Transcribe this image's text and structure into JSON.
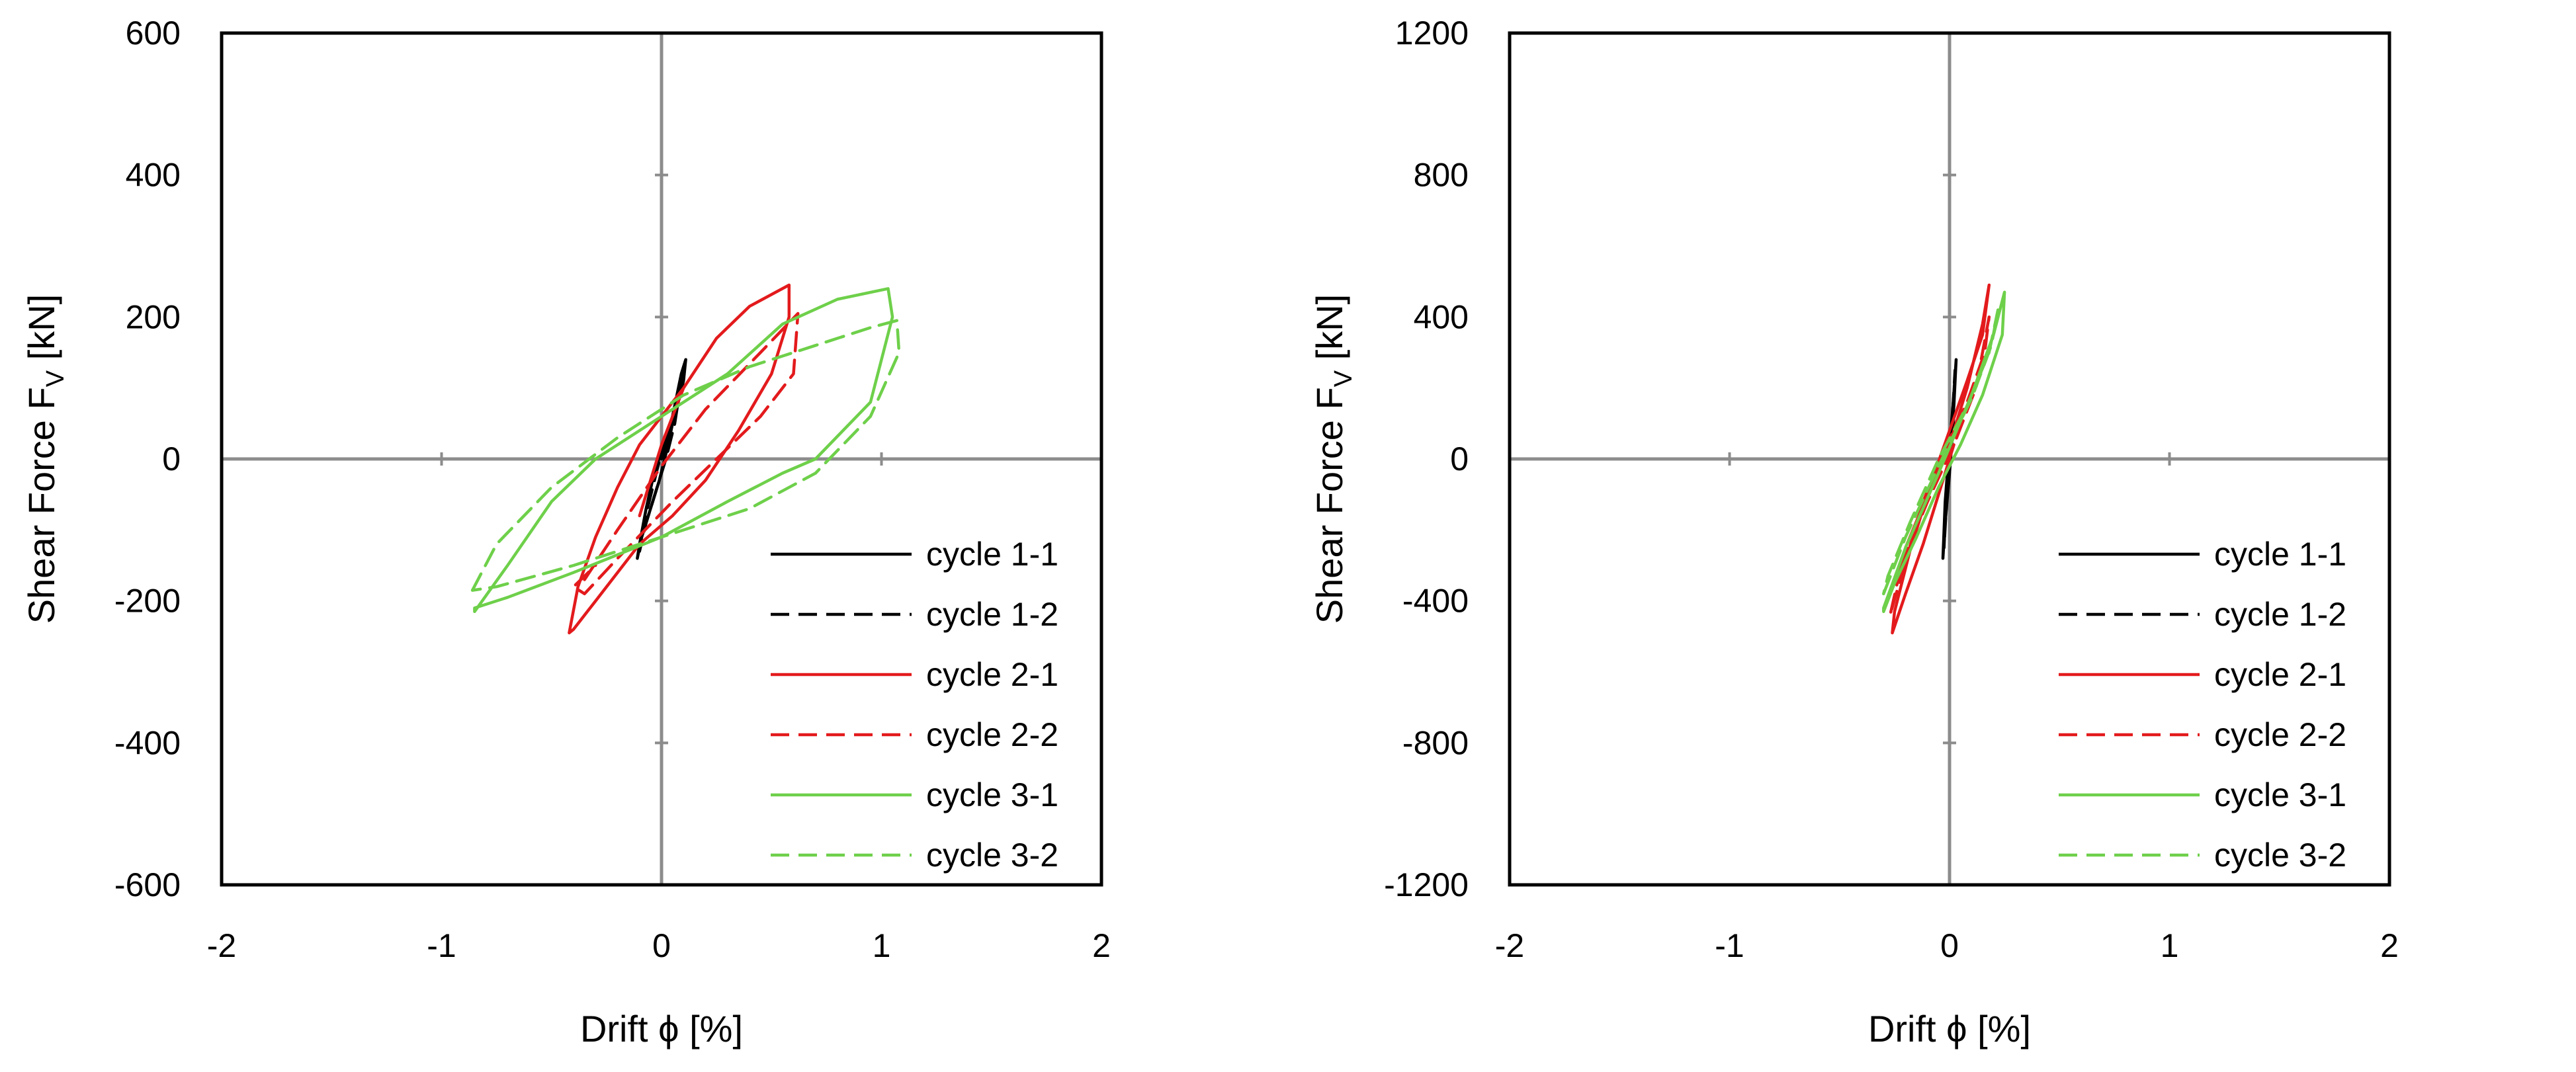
{
  "chart_data": [
    {
      "type": "line",
      "xlabel": "Drift ϕ [%]",
      "ylabel_main": "Shear Force F",
      "ylabel_sub": "V",
      "ylabel_suffix": " [kN]",
      "xlim": [
        -2,
        2
      ],
      "ylim": [
        -600,
        600
      ],
      "xticks": [
        -2,
        -1,
        0,
        1,
        2
      ],
      "yticks": [
        -600,
        -400,
        -200,
        0,
        200,
        400,
        600
      ],
      "legend_position": "bottom-right",
      "grid": false,
      "series": [
        {
          "name": "cycle 1-1",
          "color": "#000000",
          "dash": "solid",
          "x": [
            0.0,
            0.05,
            0.09,
            0.11,
            0.1,
            0.06,
            0.02,
            -0.03,
            -0.07,
            -0.1,
            -0.11,
            -0.09,
            -0.05,
            -0.01,
            0.03,
            0.07,
            0.1
          ],
          "y": [
            0,
            60,
            120,
            140,
            110,
            60,
            25,
            -15,
            -70,
            -120,
            -140,
            -110,
            -70,
            -30,
            20,
            80,
            130
          ]
        },
        {
          "name": "cycle 1-2",
          "color": "#000000",
          "dash": "dashed",
          "x": [
            0.0,
            0.04,
            0.08,
            0.1,
            0.08,
            0.04,
            0.0,
            -0.04,
            -0.08,
            -0.1,
            -0.07,
            -0.03,
            0.02,
            0.06,
            0.09
          ],
          "y": [
            0,
            40,
            90,
            130,
            90,
            45,
            10,
            -40,
            -90,
            -130,
            -90,
            -50,
            0,
            50,
            110
          ]
        },
        {
          "name": "cycle 2-1",
          "color": "#e31a1c",
          "dash": "solid",
          "x": [
            -0.1,
            0.0,
            0.1,
            0.25,
            0.4,
            0.58,
            0.58,
            0.5,
            0.35,
            0.2,
            0.05,
            -0.1,
            -0.3,
            -0.4,
            -0.42,
            -0.38,
            -0.3,
            -0.2,
            -0.1,
            0.0,
            0.1
          ],
          "y": [
            -80,
            20,
            100,
            170,
            215,
            245,
            200,
            120,
            40,
            -30,
            -80,
            -120,
            -200,
            -240,
            -245,
            -180,
            -110,
            -40,
            20,
            60,
            100
          ]
        },
        {
          "name": "cycle 2-2",
          "color": "#e31a1c",
          "dash": "dashed",
          "x": [
            -0.35,
            -0.2,
            0.0,
            0.2,
            0.45,
            0.62,
            0.6,
            0.45,
            0.25,
            0.05,
            -0.2,
            -0.35,
            -0.4,
            -0.3
          ],
          "y": [
            -170,
            -100,
            -10,
            70,
            150,
            205,
            120,
            60,
            0,
            -60,
            -140,
            -190,
            -180,
            -150
          ]
        },
        {
          "name": "cycle 3-1",
          "color": "#6ed04a",
          "dash": "solid",
          "x": [
            -0.85,
            -0.7,
            -0.5,
            -0.3,
            0.0,
            0.3,
            0.55,
            0.8,
            1.03,
            1.05,
            0.95,
            0.7,
            0.55,
            0.3,
            0.0,
            -0.4,
            -0.7,
            -0.85,
            -0.85
          ],
          "y": [
            -215,
            -150,
            -60,
            0,
            60,
            120,
            190,
            225,
            240,
            200,
            80,
            0,
            -20,
            -60,
            -110,
            -160,
            -195,
            -210,
            -215
          ]
        },
        {
          "name": "cycle 3-2",
          "color": "#6ed04a",
          "dash": "dashed",
          "x": [
            -0.86,
            -0.75,
            -0.5,
            -0.2,
            0.1,
            0.4,
            0.7,
            0.95,
            1.07,
            1.08,
            0.95,
            0.7,
            0.4,
            0.0,
            -0.4,
            -0.75,
            -0.86
          ],
          "y": [
            -185,
            -120,
            -40,
            30,
            90,
            130,
            160,
            185,
            195,
            150,
            60,
            -20,
            -70,
            -110,
            -150,
            -180,
            -185
          ]
        }
      ]
    },
    {
      "type": "line",
      "xlabel": "Drift ϕ [%]",
      "ylabel_main": "Shear Force F",
      "ylabel_sub": "V",
      "ylabel_suffix": " [kN]",
      "xlim": [
        -2,
        2
      ],
      "ylim": [
        -1200,
        1200
      ],
      "xticks": [
        -2,
        -1,
        0,
        1,
        2
      ],
      "yticks": [
        -1200,
        -800,
        -400,
        0,
        400,
        800,
        1200
      ],
      "legend_position": "bottom-right",
      "grid": false,
      "series": [
        {
          "name": "cycle 1-1",
          "color": "#000000",
          "dash": "solid",
          "x": [
            0.0,
            0.02,
            0.03,
            0.02,
            0.0,
            -0.02,
            -0.03,
            -0.02,
            0.0,
            0.02
          ],
          "y": [
            0,
            150,
            280,
            180,
            40,
            -120,
            -280,
            -180,
            -40,
            120
          ]
        },
        {
          "name": "cycle 1-2",
          "color": "#000000",
          "dash": "dashed",
          "x": [
            0.0,
            0.015,
            0.025,
            0.015,
            0.0,
            -0.015,
            -0.025,
            -0.015,
            0.0
          ],
          "y": [
            0,
            120,
            250,
            140,
            20,
            -110,
            -250,
            -140,
            -20
          ]
        },
        {
          "name": "cycle 2-1",
          "color": "#e31a1c",
          "dash": "solid",
          "x": [
            -0.2,
            -0.1,
            0.0,
            0.08,
            0.15,
            0.18,
            0.15,
            0.08,
            0.0,
            -0.08,
            -0.18,
            -0.25,
            -0.26,
            -0.2,
            -0.12,
            -0.05,
            0.02
          ],
          "y": [
            -250,
            -100,
            40,
            200,
            380,
            490,
            350,
            220,
            80,
            -60,
            -260,
            -430,
            -490,
            -380,
            -240,
            -100,
            40
          ]
        },
        {
          "name": "cycle 2-2",
          "color": "#e31a1c",
          "dash": "dashed",
          "x": [
            -0.22,
            -0.1,
            0.02,
            0.12,
            0.18,
            0.16,
            0.08,
            -0.02,
            -0.12,
            -0.22,
            -0.27,
            -0.22
          ],
          "y": [
            -300,
            -120,
            40,
            200,
            400,
            300,
            160,
            30,
            -120,
            -330,
            -440,
            -300
          ]
        },
        {
          "name": "cycle 3-1",
          "color": "#6ed04a",
          "dash": "solid",
          "x": [
            -0.3,
            -0.2,
            -0.05,
            0.1,
            0.2,
            0.25,
            0.24,
            0.15,
            0.05,
            -0.05,
            -0.15,
            -0.25,
            -0.3,
            -0.3
          ],
          "y": [
            -420,
            -250,
            -40,
            180,
            350,
            470,
            350,
            180,
            40,
            -80,
            -220,
            -350,
            -430,
            -420
          ]
        },
        {
          "name": "cycle 3-2",
          "color": "#6ed04a",
          "dash": "dashed",
          "x": [
            -0.3,
            -0.2,
            -0.05,
            0.1,
            0.19,
            0.22,
            0.18,
            0.08,
            -0.05,
            -0.18,
            -0.28,
            -0.3
          ],
          "y": [
            -380,
            -220,
            -20,
            170,
            320,
            420,
            300,
            150,
            0,
            -180,
            -330,
            -380
          ]
        }
      ]
    }
  ]
}
